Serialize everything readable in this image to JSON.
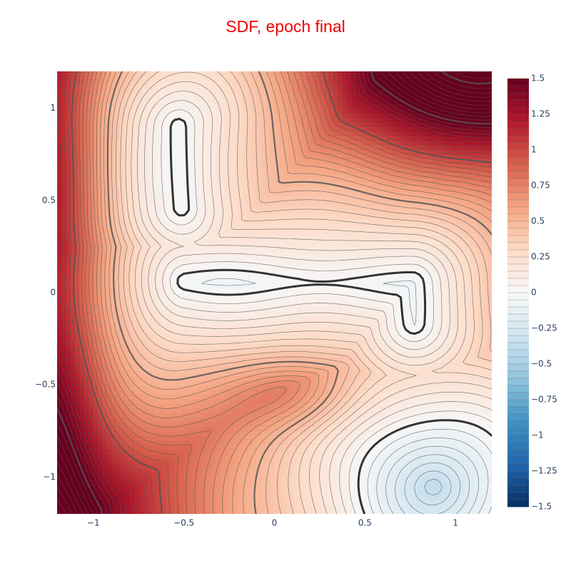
{
  "chart_data": {
    "type": "contour",
    "title": "SDF, epoch final",
    "title_color": "#ee0000",
    "xlabel": "",
    "ylabel": "",
    "xlim": [
      -1.2,
      1.2
    ],
    "ylim": [
      -1.2,
      1.2
    ],
    "x_ticks": [
      -1,
      -0.5,
      0,
      0.5,
      1
    ],
    "x_tick_labels": [
      "−1",
      "−0.5",
      "0",
      "0.5",
      "1"
    ],
    "y_ticks": [
      1,
      0.5,
      0,
      -0.5,
      -1
    ],
    "y_tick_labels": [
      "1",
      "0.5",
      "0",
      "−0.5",
      "−1"
    ],
    "colorbar": {
      "range": [
        -1.5,
        1.5
      ],
      "ticks": [
        1.5,
        1.25,
        1,
        0.75,
        0.5,
        0.25,
        0,
        -0.25,
        -0.5,
        -0.75,
        -1,
        -1.25,
        -1.5
      ],
      "tick_labels": [
        "1.5",
        "1.25",
        "1",
        "0.75",
        "0.5",
        "0.25",
        "0",
        "−0.25",
        "−0.5",
        "−0.75",
        "−1",
        "−1.25",
        "−1.5"
      ],
      "colorscale": "RdBu (reversed)",
      "colors": [
        "#053061",
        "#2166ac",
        "#4393c3",
        "#92c5de",
        "#d1e5f0",
        "#f7f7f7",
        "#fddbc7",
        "#f4a582",
        "#d6604d",
        "#b2182b",
        "#67001f"
      ]
    },
    "contour_step": 0.05,
    "zero_level_color": "#333333",
    "line_color": "#555555",
    "description_shapes": [
      {
        "shape": "vertical capsule",
        "x": [
          -0.57,
          -0.49
        ],
        "y": [
          0.42,
          0.95
        ]
      },
      {
        "shape": "horizontal bar with downward hook",
        "x": [
          -0.55,
          0.82
        ],
        "y": [
          -0.2,
          0.1
        ]
      },
      {
        "shape": "lower-right region",
        "x": [
          0.5,
          1.2
        ],
        "y": [
          -1.2,
          -0.6
        ]
      }
    ]
  }
}
